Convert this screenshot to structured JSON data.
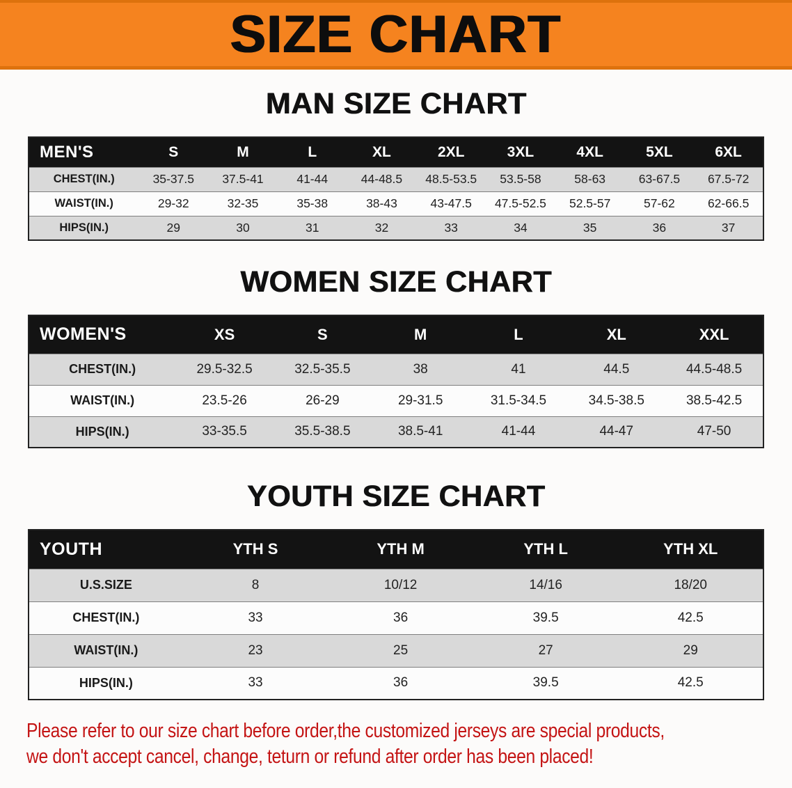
{
  "banner": {
    "title": "SIZE CHART"
  },
  "colors": {
    "banner_bg": "#f5831f",
    "table_header_bg": "#131313",
    "row_gray": "#d9d9d9",
    "note_red": "#c41414"
  },
  "sections": [
    {
      "heading": "MAN SIZE CHART",
      "table": {
        "header": [
          "MEN'S",
          "S",
          "M",
          "L",
          "XL",
          "2XL",
          "3XL",
          "4XL",
          "5XL",
          "6XL"
        ],
        "rows": [
          [
            "CHEST(IN.)",
            "35-37.5",
            "37.5-41",
            "41-44",
            "44-48.5",
            "48.5-53.5",
            "53.5-58",
            "58-63",
            "63-67.5",
            "67.5-72"
          ],
          [
            "WAIST(IN.)",
            "29-32",
            "32-35",
            "35-38",
            "38-43",
            "43-47.5",
            "47.5-52.5",
            "52.5-57",
            "57-62",
            "62-66.5"
          ],
          [
            "HIPS(IN.)",
            "29",
            "30",
            "31",
            "32",
            "33",
            "34",
            "35",
            "36",
            "37"
          ]
        ]
      }
    },
    {
      "heading": "WOMEN SIZE CHART",
      "table": {
        "header": [
          "WOMEN'S",
          "XS",
          "S",
          "M",
          "L",
          "XL",
          "XXL"
        ],
        "rows": [
          [
            "CHEST(IN.)",
            "29.5-32.5",
            "32.5-35.5",
            "38",
            "41",
            "44.5",
            "44.5-48.5"
          ],
          [
            "WAIST(IN.)",
            "23.5-26",
            "26-29",
            "29-31.5",
            "31.5-34.5",
            "34.5-38.5",
            "38.5-42.5"
          ],
          [
            "HIPS(IN.)",
            "33-35.5",
            "35.5-38.5",
            "38.5-41",
            "41-44",
            "44-47",
            "47-50"
          ]
        ]
      }
    },
    {
      "heading": "YOUTH SIZE CHART",
      "table": {
        "header": [
          "YOUTH",
          "YTH S",
          "YTH M",
          "YTH L",
          "YTH XL"
        ],
        "rows": [
          [
            "U.S.SIZE",
            "8",
            "10/12",
            "14/16",
            "18/20"
          ],
          [
            "CHEST(IN.)",
            "33",
            "36",
            "39.5",
            "42.5"
          ],
          [
            "WAIST(IN.)",
            "23",
            "25",
            "27",
            "29"
          ],
          [
            "HIPS(IN.)",
            "33",
            "36",
            "39.5",
            "42.5"
          ]
        ]
      }
    }
  ],
  "note": {
    "line1": "Please refer to our size chart before order,the customized jerseys are special products,",
    "line2": "we don't accept cancel, change, teturn or refund after order has been placed!"
  }
}
